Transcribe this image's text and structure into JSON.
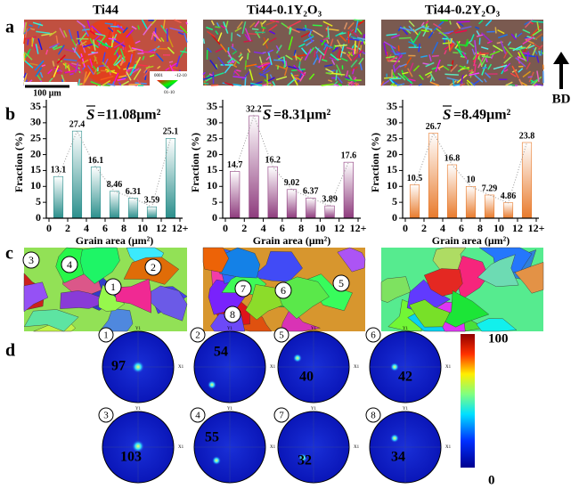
{
  "panel_labels": [
    "a",
    "b",
    "c",
    "d"
  ],
  "column_titles": [
    "Ti44",
    "Ti44-0.1Y₂O₃",
    "Ti44-0.2Y₂O₃"
  ],
  "scale_bar": "100 μm",
  "ipf_legend": [
    "0001",
    "-12-10",
    "01-10"
  ],
  "build_direction": "BD",
  "chart_data": [
    {
      "type": "bar",
      "ylabel": "Fraction (%)",
      "xlabel": "Grain area (μm²)",
      "mean_symbol": "S",
      "mean_value": "=11.08μm²",
      "xtick_labels": [
        "0",
        "2",
        "4",
        "6",
        "8",
        "10",
        "12",
        "12+"
      ],
      "values": [
        13.1,
        27.4,
        16.1,
        8.46,
        6.31,
        3.59,
        25.1
      ],
      "color": "#2b8f8c",
      "ylim": [
        0,
        35
      ],
      "yticks": [
        0,
        5,
        10,
        15,
        20,
        25,
        30,
        35
      ]
    },
    {
      "type": "bar",
      "ylabel": "Fraction (%)",
      "xlabel": "Grain area (μm²)",
      "mean_symbol": "S",
      "mean_value": "=8.31μm²",
      "xtick_labels": [
        "0",
        "2",
        "4",
        "6",
        "8",
        "10",
        "12",
        "12+"
      ],
      "values": [
        14.7,
        32.2,
        16.2,
        9.02,
        6.37,
        3.89,
        17.6
      ],
      "color": "#8e3b7d",
      "ylim": [
        0,
        35
      ],
      "yticks": [
        0,
        5,
        10,
        15,
        20,
        25,
        30,
        35
      ]
    },
    {
      "type": "bar",
      "ylabel": "Fraction (%)",
      "xlabel": "Grain area (μm²)",
      "mean_symbol": "S",
      "mean_value": "=8.49μm²",
      "xtick_labels": [
        "0",
        "2",
        "4",
        "6",
        "8",
        "10",
        "12",
        "12+"
      ],
      "values": [
        10.5,
        26.7,
        16.8,
        10,
        7.29,
        4.86,
        23.8
      ],
      "color": "#e87a2c",
      "ylim": [
        0,
        35
      ],
      "yticks": [
        0,
        5,
        10,
        15,
        20,
        25,
        30,
        35
      ]
    }
  ],
  "map_labels": [
    [
      "3",
      "4",
      "1",
      "2"
    ],
    [
      "7",
      "6",
      "5",
      "8"
    ]
  ],
  "pole_figures": [
    {
      "label": "1",
      "max": "97"
    },
    {
      "label": "2",
      "max": "54"
    },
    {
      "label": "5",
      "max": "40"
    },
    {
      "label": "6",
      "max": "42"
    },
    {
      "label": "3",
      "max": "103"
    },
    {
      "label": "4",
      "max": "55"
    },
    {
      "label": "7",
      "max": "32"
    },
    {
      "label": "8",
      "max": "34"
    }
  ],
  "pole_axes": [
    "Y1",
    "X1"
  ],
  "colorbar": {
    "ticks": [
      "100",
      "0"
    ]
  }
}
